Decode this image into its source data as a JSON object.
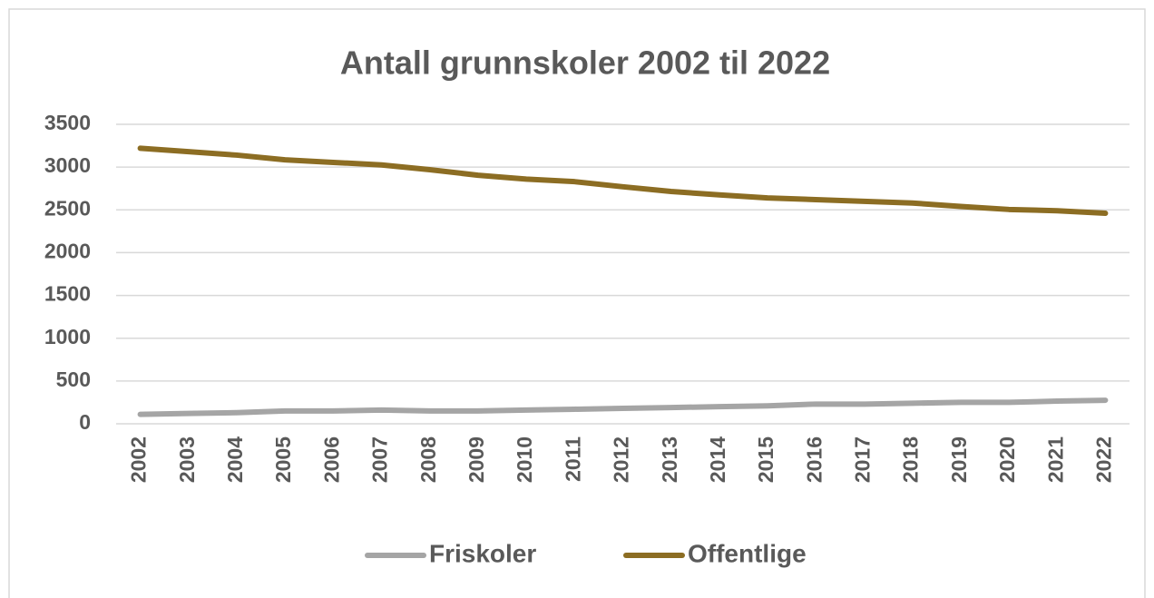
{
  "chart_data": {
    "type": "line",
    "title": "Antall grunnskoler 2002 til 2022",
    "categories": [
      "2002",
      "2003",
      "2004",
      "2005",
      "2006",
      "2007",
      "2008",
      "2009",
      "2010",
      "2011",
      "2012",
      "2013",
      "2014",
      "2015",
      "2016",
      "2017",
      "2018",
      "2019",
      "2020",
      "2021",
      "2022"
    ],
    "series": [
      {
        "name": "Friskoler",
        "color": "#a5a5a5",
        "values": [
          110,
          120,
          130,
          150,
          150,
          160,
          150,
          150,
          160,
          170,
          180,
          190,
          200,
          210,
          230,
          230,
          240,
          250,
          250,
          265,
          275
        ]
      },
      {
        "name": "Offentlige",
        "color": "#8c6d23",
        "values": [
          3220,
          3180,
          3140,
          3085,
          3055,
          3025,
          2970,
          2905,
          2860,
          2830,
          2770,
          2715,
          2675,
          2640,
          2620,
          2600,
          2580,
          2540,
          2505,
          2490,
          2460
        ]
      }
    ],
    "ylim": [
      0,
      3500
    ],
    "yticks": [
      0,
      500,
      1000,
      1500,
      2000,
      2500,
      3000,
      3500
    ],
    "grid": true,
    "legend": "bottom"
  }
}
